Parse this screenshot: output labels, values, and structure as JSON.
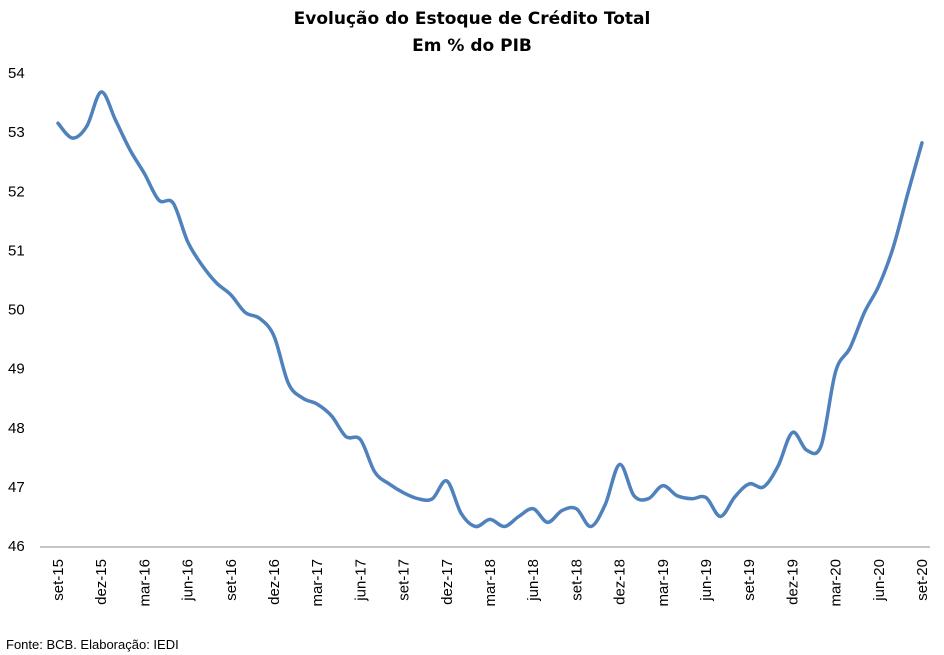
{
  "chart_data": {
    "type": "line",
    "title": "Evolução do Estoque de Crédito Total",
    "subtitle": "Em % do PIB",
    "xlabel": "",
    "ylabel": "",
    "ylim": [
      46,
      54
    ],
    "y_ticks": [
      "46",
      "47",
      "48",
      "49",
      "50",
      "51",
      "52",
      "53",
      "54"
    ],
    "x_tick_labels": [
      "set-15",
      "dez-15",
      "mar-16",
      "jun-16",
      "set-16",
      "dez-16",
      "mar-17",
      "jun-17",
      "set-17",
      "dez-17",
      "mar-18",
      "jun-18",
      "set-18",
      "dez-18",
      "mar-19",
      "jun-19",
      "set-19",
      "dez-19",
      "mar-20",
      "jun-20",
      "set-20"
    ],
    "grid": false,
    "legend": "none",
    "line_color": "#4F81BD",
    "series": [
      {
        "x": [
          "set-15",
          "out-15",
          "nov-15",
          "dez-15",
          "jan-16",
          "fev-16",
          "mar-16",
          "abr-16",
          "mai-16",
          "jun-16",
          "jul-16",
          "ago-16",
          "set-16",
          "out-16",
          "nov-16",
          "dez-16",
          "jan-17",
          "fev-17",
          "mar-17",
          "abr-17",
          "mai-17",
          "jun-17",
          "jul-17",
          "ago-17",
          "set-17",
          "out-17",
          "nov-17",
          "dez-17",
          "jan-18",
          "fev-18",
          "mar-18",
          "abr-18",
          "mai-18",
          "jun-18",
          "jul-18",
          "ago-18",
          "set-18",
          "out-18",
          "nov-18",
          "dez-18",
          "jan-19",
          "fev-19",
          "mar-19",
          "abr-19",
          "mai-19",
          "jun-19",
          "jul-19",
          "ago-19",
          "set-19",
          "out-19",
          "nov-19",
          "dez-19",
          "jan-20",
          "fev-20",
          "mar-20",
          "abr-20",
          "mai-20",
          "jun-20",
          "jul-20",
          "ago-20",
          "set-20"
        ],
        "values": [
          53.15,
          52.9,
          53.1,
          53.68,
          53.2,
          52.7,
          52.3,
          51.85,
          51.8,
          51.15,
          50.75,
          50.45,
          50.25,
          49.95,
          49.85,
          49.55,
          48.75,
          48.5,
          48.4,
          48.2,
          47.85,
          47.8,
          47.25,
          47.05,
          46.9,
          46.8,
          46.8,
          47.1,
          46.55,
          46.33,
          46.45,
          46.33,
          46.5,
          46.63,
          46.4,
          46.6,
          46.63,
          46.33,
          46.7,
          47.38,
          46.85,
          46.8,
          47.02,
          46.85,
          46.8,
          46.82,
          46.5,
          46.83,
          47.05,
          47.0,
          47.35,
          47.92,
          47.62,
          47.7,
          48.95,
          49.35,
          49.95,
          50.4,
          51.05,
          51.95,
          52.82
        ]
      }
    ]
  },
  "footnote": "Fonte: BCB. Elaboração: IEDI"
}
